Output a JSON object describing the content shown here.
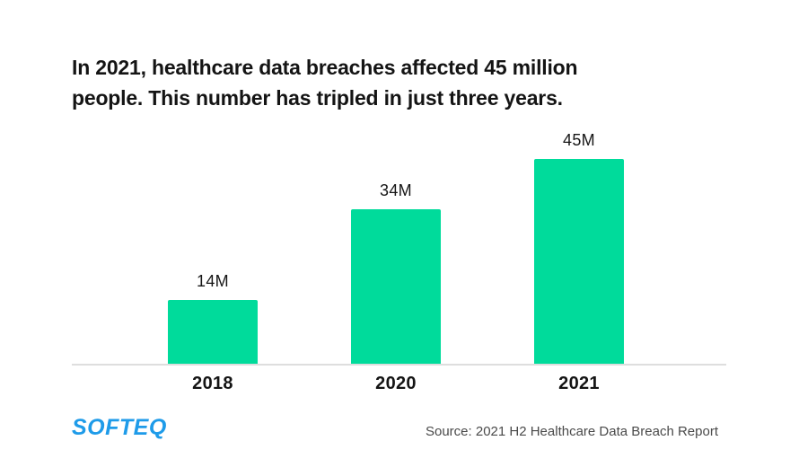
{
  "header": {
    "title_lines": [
      "In 2021, healthcare data breaches affected 45 million",
      "people. This number has tripled in just three years."
    ]
  },
  "chart_data": {
    "type": "bar",
    "categories": [
      "2018",
      "2020",
      "2021"
    ],
    "values": [
      14,
      34,
      45
    ],
    "bar_labels": [
      "14M",
      "34M",
      "45M"
    ],
    "title": "In 2021, healthcare data breaches affected 45 million people. This number has tripled in just three years.",
    "xlabel": "",
    "ylabel": "",
    "ylim": [
      0,
      45
    ],
    "grid": false,
    "legend": false,
    "bar_color": "#00db9b"
  },
  "footer": {
    "logo_text": "SOFTEQ",
    "source": "Source: 2021 H2 Healthcare Data Breach Report"
  },
  "colors": {
    "bar_green": "#00db9b",
    "logo_blue": "#1e9be9",
    "title_text": "#141414",
    "source_text": "#4a4a4a",
    "axis_line": "#dedede"
  }
}
